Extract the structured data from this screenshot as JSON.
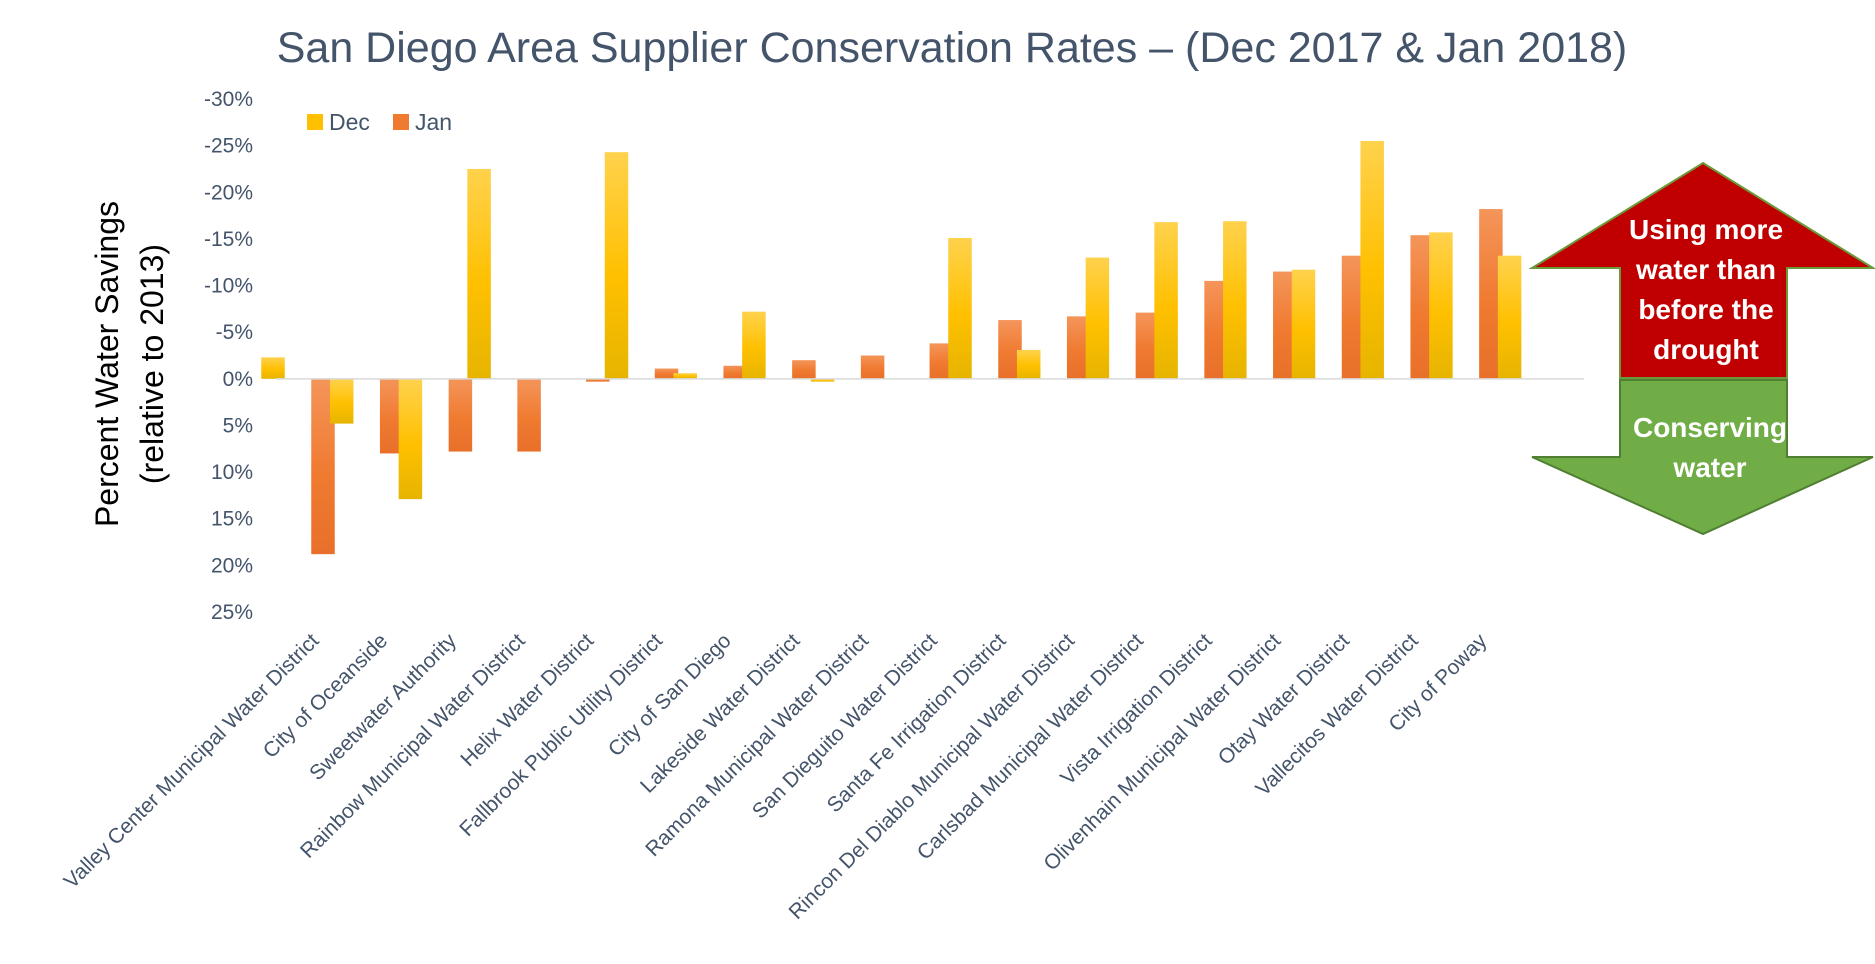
{
  "chart_data": {
    "type": "bar",
    "title": "San Diego Area Supplier Conservation Rates – (Dec 2017 & Jan 2018)",
    "ylabel": [
      "Percent Water Savings",
      "(relative to 2013)"
    ],
    "xlabel": "",
    "ylim": [
      25,
      -30
    ],
    "y_ticks": [
      {
        "value": -30,
        "label": "-30%"
      },
      {
        "value": -25,
        "label": "-25%"
      },
      {
        "value": -20,
        "label": "-20%"
      },
      {
        "value": -15,
        "label": "-15%"
      },
      {
        "value": -10,
        "label": "-10%"
      },
      {
        "value": -5,
        "label": "-5%"
      },
      {
        "value": 0,
        "label": "0%"
      },
      {
        "value": 5,
        "label": "5%"
      },
      {
        "value": 10,
        "label": "10%"
      },
      {
        "value": 15,
        "label": "15%"
      },
      {
        "value": 20,
        "label": "20%"
      },
      {
        "value": 25,
        "label": "25%"
      }
    ],
    "grid": false,
    "legend_position": "top-left",
    "categories": [
      "Valley Center Municipal Water District",
      "City of Oceanside",
      "Sweetwater Authority",
      "Rainbow Municipal Water District",
      "Helix Water District",
      "Fallbrook Public Utility District",
      "City of San Diego",
      "Lakeside Water District",
      "Ramona Municipal Water District",
      "San Dieguito Water District",
      "Santa Fe Irrigation District",
      "Rincon Del Diablo Municipal Water District",
      "Carlsbad Municipal Water District",
      "Vista Irrigation District",
      "Olivenhain Municipal Water District",
      "Otay Water District",
      "Vallecitos Water District",
      "City of Poway"
    ],
    "series": [
      {
        "name": "Dec",
        "color_top": "#ffd24d",
        "color_mid": "#ffc000",
        "color_bottom": "#e6b400",
        "values": [
          -2.3,
          4.8,
          12.9,
          -22.5,
          0,
          -24.3,
          -0.6,
          -7.2,
          0.3,
          0,
          -15.1,
          -3.1,
          -13,
          -16.8,
          -16.9,
          -11.7,
          -25.5,
          -15.7
        ]
      },
      {
        "name": "Jan",
        "color_top": "#f4955a",
        "color_mid": "#f07a30",
        "color_bottom": "#e8702a",
        "values": [
          18.8,
          8,
          7.8,
          7.8,
          0.3,
          -1.1,
          -1.4,
          -2,
          -2.5,
          -3.8,
          -6.3,
          -6.7,
          -7.1,
          -10.5,
          -11.5,
          -13.2,
          -15.4,
          -18.2
        ]
      }
    ],
    "extra_bars": [
      {
        "series": "Dec",
        "value": -13.2
      }
    ],
    "annotations": {
      "up_arrow": {
        "lines": [
          "Using more",
          "water than",
          "before the",
          "drought"
        ],
        "color": "#c00000",
        "outline": "#6a9a3a"
      },
      "down_arrow": {
        "lines": [
          "Conserving",
          "water"
        ],
        "color": "#70ad47",
        "outline": "#507e32"
      }
    }
  }
}
